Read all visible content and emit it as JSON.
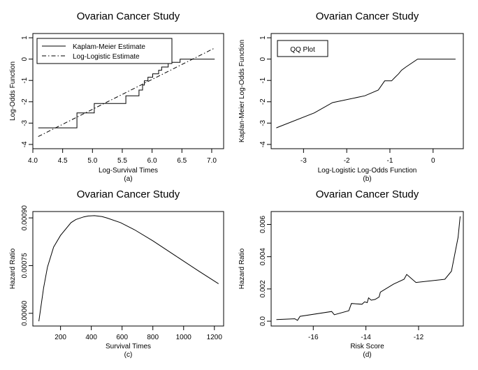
{
  "chart_data": [
    {
      "type": "line",
      "title": "Ovarian Cancer Study",
      "xlabel": "Log-Survival Times",
      "ylabel": "Log-Odds Function",
      "caption": "(a)",
      "xlim": [
        4.0,
        7.2
      ],
      "ylim": [
        -4.2,
        1.2
      ],
      "xticks": [
        4.0,
        4.5,
        5.0,
        5.5,
        6.0,
        6.5,
        7.0
      ],
      "xtick_labels": [
        "4.0",
        "4.5",
        "5.0",
        "5.5",
        "6.0",
        "6.5",
        "7.0"
      ],
      "yticks": [
        -4,
        -3,
        -2,
        -1,
        0,
        1
      ],
      "ytick_labels": [
        "-4",
        "-3",
        "-2",
        "-1",
        "0",
        "1"
      ],
      "legend": {
        "position": "top-left",
        "entries": [
          "Kaplam-Meier Estimate",
          "Log-Logistic Estimate"
        ]
      },
      "series": [
        {
          "name": "Kaplam-Meier Estimate",
          "style": "step",
          "x": [
            4.09,
            4.74,
            4.74,
            5.03,
            5.03,
            5.56,
            5.56,
            5.78,
            5.78,
            5.84,
            5.84,
            5.87,
            5.87,
            5.93,
            5.93,
            6.01,
            6.01,
            6.11,
            6.11,
            6.16,
            6.16,
            6.27,
            6.27,
            6.47,
            6.47,
            7.05
          ],
          "y": [
            -3.22,
            -3.22,
            -2.52,
            -2.52,
            -2.08,
            -2.08,
            -1.72,
            -1.72,
            -1.45,
            -1.45,
            -1.22,
            -1.22,
            -1.02,
            -1.02,
            -0.85,
            -0.85,
            -0.69,
            -0.69,
            -0.52,
            -0.52,
            -0.37,
            -0.37,
            -0.15,
            -0.15,
            0.0,
            0.0
          ]
        },
        {
          "name": "Log-Logistic Estimate",
          "style": "dashdot",
          "x": [
            4.09,
            7.05
          ],
          "y": [
            -3.63,
            0.52
          ]
        }
      ]
    },
    {
      "type": "line",
      "title": "Ovarian Cancer Study",
      "xlabel": "Log-Logistic Log-Odds Function",
      "ylabel": "Kaplan-Meier Log-Odds Function",
      "caption": "(b)",
      "xlim": [
        -3.75,
        0.7
      ],
      "ylim": [
        -4.2,
        1.2
      ],
      "xticks": [
        -3,
        -2,
        -1,
        0
      ],
      "xtick_labels": [
        "-3",
        "-2",
        "-1",
        "0"
      ],
      "yticks": [
        -4,
        -3,
        -2,
        -1,
        0,
        1
      ],
      "ytick_labels": [
        "-4",
        "-3",
        "-2",
        "-1",
        "0",
        "1"
      ],
      "legend": {
        "position": "top-left",
        "entries": [
          "QQ Plot"
        ]
      },
      "series": [
        {
          "x": [
            -3.63,
            -2.75,
            -2.33,
            -1.58,
            -1.27,
            -1.12,
            -0.96,
            -0.88,
            -0.8,
            -0.73,
            -0.63,
            -0.36,
            0.52
          ],
          "y": [
            -3.22,
            -2.52,
            -2.04,
            -1.72,
            -1.45,
            -1.02,
            -1.02,
            -0.85,
            -0.69,
            -0.52,
            -0.37,
            0.0,
            0.0
          ]
        }
      ]
    },
    {
      "type": "line",
      "title": "Ovarian Cancer Study",
      "xlabel": "Survival Times",
      "ylabel": "Hazard Ratio",
      "caption": "(c)",
      "xlim": [
        20,
        1260
      ],
      "ylim": [
        0.00056,
        0.00092
      ],
      "xticks": [
        200,
        400,
        600,
        800,
        1000,
        1200
      ],
      "xtick_labels": [
        "200",
        "400",
        "600",
        "800",
        "1000",
        "1200"
      ],
      "yticks": [
        0.0006,
        0.00075,
        0.0009
      ],
      "ytick_labels": [
        "0.00060",
        "0.00075",
        "0.00090"
      ],
      "series": [
        {
          "x": [
            59,
            90,
            115,
            155,
            200,
            268,
            300,
            350,
            380,
            420,
            470,
            500,
            590,
            680,
            800,
            950,
            1100,
            1227
          ],
          "y": [
            0.000575,
            0.00068,
            0.000745,
            0.000808,
            0.000845,
            0.000885,
            0.000895,
            0.000903,
            0.000906,
            0.000907,
            0.000904,
            0.0009,
            0.000885,
            0.000863,
            0.000828,
            0.00078,
            0.000732,
            0.000693
          ]
        }
      ]
    },
    {
      "type": "line",
      "title": "Ovarian Cancer Study",
      "xlabel": "Risk Score",
      "ylabel": "Hazard Ratio",
      "caption": "(d)",
      "xlim": [
        -17.6,
        -10.3
      ],
      "ylim": [
        -0.0003,
        0.0068
      ],
      "xticks": [
        -16,
        -14,
        -12
      ],
      "xtick_labels": [
        "-16",
        "-14",
        "-12"
      ],
      "yticks": [
        0.0,
        0.002,
        0.004,
        0.006
      ],
      "ytick_labels": [
        "0.0",
        "0.002",
        "0.004",
        "0.006"
      ],
      "series": [
        {
          "x": [
            -17.4,
            -16.7,
            -16.6,
            -16.5,
            -15.3,
            -15.2,
            -14.65,
            -14.55,
            -14.15,
            -14.05,
            -13.95,
            -13.9,
            -13.8,
            -13.65,
            -13.5,
            -13.45,
            -12.95,
            -12.55,
            -12.45,
            -12.1,
            -11.0,
            -10.75,
            -10.5,
            -10.42
          ],
          "y": [
            0.0001,
            0.00015,
            5e-05,
            0.0003,
            0.0006,
            0.0004,
            0.00065,
            0.0011,
            0.00105,
            0.0012,
            0.00115,
            0.00145,
            0.0013,
            0.00135,
            0.0015,
            0.0018,
            0.0023,
            0.0026,
            0.0029,
            0.0024,
            0.0026,
            0.0031,
            0.0052,
            0.0065
          ]
        }
      ]
    }
  ]
}
